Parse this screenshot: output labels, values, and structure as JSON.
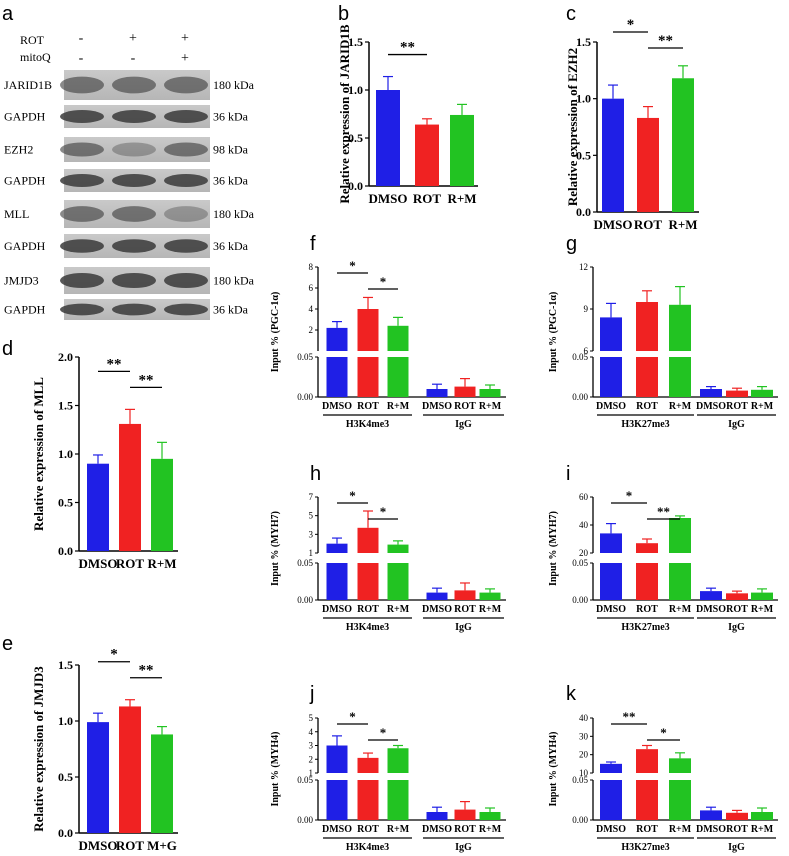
{
  "colors": {
    "blue": "#1f1fe6",
    "red": "#f02222",
    "green": "#22c322",
    "axis": "#000000"
  },
  "panel_labels": {
    "a": "a",
    "b": "b",
    "c": "c",
    "d": "d",
    "e": "e",
    "f": "f",
    "g": "g",
    "h": "h",
    "i": "i",
    "j": "j",
    "k": "k"
  },
  "western_blot": {
    "treatments": [
      {
        "name": "ROT",
        "signs": [
          "-",
          "+",
          "+"
        ]
      },
      {
        "name": "mitoQ",
        "signs": [
          "-",
          "-",
          "+"
        ]
      }
    ],
    "rows": [
      {
        "protein": "JARID1B",
        "size": "180 kDa"
      },
      {
        "protein": "GAPDH",
        "size": "36 kDa"
      },
      {
        "protein": "EZH2",
        "size": "98 kDa"
      },
      {
        "protein": "GAPDH",
        "size": "36 kDa"
      },
      {
        "protein": "MLL",
        "size": "180 kDa"
      },
      {
        "protein": "GAPDH",
        "size": "36 kDa"
      },
      {
        "protein": "JMJD3",
        "size": "180 kDa"
      },
      {
        "protein": "GAPDH",
        "size": "36 kDa"
      }
    ]
  },
  "chart_data": [
    {
      "id": "b",
      "type": "bar",
      "ylabel": "Relative expression of JARID1B",
      "categories": [
        "DMSO",
        "ROT",
        "R+M"
      ],
      "values": [
        1.0,
        0.64,
        0.74
      ],
      "errors": [
        0.14,
        0.06,
        0.11
      ],
      "ylim": [
        0,
        1.5
      ],
      "yticks": [
        "0.0",
        "0.5",
        "1.0",
        "1.5"
      ],
      "sig": [
        {
          "from": 0,
          "to": 1,
          "label": "**"
        }
      ]
    },
    {
      "id": "c",
      "type": "bar",
      "ylabel": "Relative expression of EZH2",
      "categories": [
        "DMSO",
        "ROT",
        "R+M"
      ],
      "values": [
        1.0,
        0.83,
        1.18
      ],
      "errors": [
        0.12,
        0.1,
        0.11
      ],
      "ylim": [
        0,
        1.5
      ],
      "yticks": [
        "0.0",
        "0.5",
        "1.0",
        "1.5"
      ],
      "sig": [
        {
          "from": 0,
          "to": 1,
          "label": "*"
        },
        {
          "from": 1,
          "to": 2,
          "label": "**"
        }
      ]
    },
    {
      "id": "d",
      "type": "bar",
      "ylabel": "Relative expression of MLL",
      "categories": [
        "DMSO",
        "ROT",
        "R+M"
      ],
      "values": [
        0.9,
        1.31,
        0.95
      ],
      "errors": [
        0.09,
        0.15,
        0.17
      ],
      "ylim": [
        0,
        2.0
      ],
      "yticks": [
        "0.0",
        "0.5",
        "1.0",
        "1.5",
        "2.0"
      ],
      "sig": [
        {
          "from": 0,
          "to": 1,
          "label": "**"
        },
        {
          "from": 1,
          "to": 2,
          "label": "**"
        }
      ]
    },
    {
      "id": "e",
      "type": "bar",
      "ylabel": "Relative expression of JMJD3",
      "categories": [
        "DMSO",
        "ROT",
        "M+G"
      ],
      "values": [
        0.99,
        1.13,
        0.88
      ],
      "errors": [
        0.08,
        0.06,
        0.07
      ],
      "ylim": [
        0,
        1.5
      ],
      "yticks": [
        "0.0",
        "0.5",
        "1.0",
        "1.5"
      ],
      "sig": [
        {
          "from": 0,
          "to": 1,
          "label": "*"
        },
        {
          "from": 1,
          "to": 2,
          "label": "**"
        }
      ]
    },
    {
      "id": "f",
      "type": "bar",
      "ylabel": "Input % (PGC-1α)",
      "categories": [
        "DMSO",
        "ROT",
        "R+M",
        "DMSO",
        "ROT",
        "R+M"
      ],
      "groups": [
        "H3K4me3",
        "IgG"
      ],
      "lower": {
        "values": [
          0.01,
          0.013,
          0.01
        ],
        "errors": [
          0.006,
          0.01,
          0.005
        ],
        "ylim": [
          0,
          0.05
        ],
        "yticks": [
          "0.00",
          "0.05"
        ]
      },
      "upper": {
        "values": [
          2.2,
          4.0,
          2.4
        ],
        "errors": [
          0.6,
          1.1,
          0.8
        ],
        "ylim": [
          0,
          8
        ],
        "yticks": [
          "2",
          "4",
          "6",
          "8"
        ]
      },
      "sig": [
        {
          "from": 0,
          "to": 1,
          "label": "*"
        },
        {
          "from": 1,
          "to": 2,
          "label": "*"
        }
      ]
    },
    {
      "id": "g",
      "type": "bar",
      "ylabel": "Input % (PGC-1α)",
      "categories": [
        "DMSO",
        "ROT",
        "R+M",
        "DMSO",
        "ROT",
        "R+M"
      ],
      "groups": [
        "H3K27me3",
        "IgG"
      ],
      "lower": {
        "values": [
          0.01,
          0.008,
          0.009
        ],
        "errors": [
          0.003,
          0.003,
          0.004
        ],
        "ylim": [
          0,
          0.05
        ],
        "yticks": [
          "0.00",
          "0.05"
        ]
      },
      "upper": {
        "values": [
          8.4,
          9.5,
          9.3
        ],
        "errors": [
          1.0,
          0.8,
          1.3
        ],
        "ylim": [
          6,
          12
        ],
        "yticks": [
          "6",
          "9",
          "12"
        ]
      },
      "sig": []
    },
    {
      "id": "h",
      "type": "bar",
      "ylabel": "Input % (MYH7)",
      "categories": [
        "DMSO",
        "ROT",
        "R+M",
        "DMSO",
        "ROT",
        "R+M"
      ],
      "groups": [
        "H3K4me3",
        "IgG"
      ],
      "lower": {
        "values": [
          0.01,
          0.013,
          0.01
        ],
        "errors": [
          0.006,
          0.01,
          0.005
        ],
        "ylim": [
          0,
          0.05
        ],
        "yticks": [
          "0.00",
          "0.05"
        ]
      },
      "upper": {
        "values": [
          2.0,
          3.7,
          1.9
        ],
        "errors": [
          0.6,
          1.8,
          0.4
        ],
        "ylim": [
          1,
          7
        ],
        "yticks": [
          "1",
          "3",
          "5",
          "7"
        ]
      },
      "sig": [
        {
          "from": 0,
          "to": 1,
          "label": "*"
        },
        {
          "from": 1,
          "to": 2,
          "label": "*"
        }
      ]
    },
    {
      "id": "i",
      "type": "bar",
      "ylabel": "Input % (MYH7)",
      "categories": [
        "DMSO",
        "ROT",
        "R+M",
        "DMSO",
        "ROT",
        "R+M"
      ],
      "groups": [
        "H3K27me3",
        "IgG"
      ],
      "lower": {
        "values": [
          0.012,
          0.009,
          0.01
        ],
        "errors": [
          0.004,
          0.003,
          0.005
        ],
        "ylim": [
          0,
          0.05
        ],
        "yticks": [
          "0.00",
          "0.05"
        ]
      },
      "upper": {
        "values": [
          34,
          27,
          45
        ],
        "errors": [
          7,
          3,
          1.5
        ],
        "ylim": [
          20,
          60
        ],
        "yticks": [
          "20",
          "40",
          "60"
        ]
      },
      "sig": [
        {
          "from": 0,
          "to": 1,
          "label": "*"
        },
        {
          "from": 1,
          "to": 2,
          "label": "**"
        }
      ]
    },
    {
      "id": "j",
      "type": "bar",
      "ylabel": "Input % (MYH4)",
      "categories": [
        "DMSO",
        "ROT",
        "R+M",
        "DMSO",
        "ROT",
        "R+M"
      ],
      "groups": [
        "H3K4me3",
        "IgG"
      ],
      "lower": {
        "values": [
          0.01,
          0.013,
          0.01
        ],
        "errors": [
          0.006,
          0.01,
          0.005
        ],
        "ylim": [
          0,
          0.05
        ],
        "yticks": [
          "0.00",
          "0.05"
        ]
      },
      "upper": {
        "values": [
          3.0,
          2.1,
          2.8
        ],
        "errors": [
          0.7,
          0.35,
          0.2
        ],
        "ylim": [
          1,
          5
        ],
        "yticks": [
          "1",
          "2",
          "3",
          "4",
          "5"
        ]
      },
      "sig": [
        {
          "from": 0,
          "to": 1,
          "label": "*"
        },
        {
          "from": 1,
          "to": 2,
          "label": "*"
        }
      ]
    },
    {
      "id": "k",
      "type": "bar",
      "ylabel": "Input % (MYH4)",
      "categories": [
        "DMSO",
        "ROT",
        "R+M",
        "DMSO",
        "ROT",
        "R+M"
      ],
      "groups": [
        "H3K27me3",
        "IgG"
      ],
      "lower": {
        "values": [
          0.012,
          0.009,
          0.01
        ],
        "errors": [
          0.004,
          0.003,
          0.005
        ],
        "ylim": [
          0,
          0.05
        ],
        "yticks": [
          "0.00",
          "0.05"
        ]
      },
      "upper": {
        "values": [
          15,
          23,
          18
        ],
        "errors": [
          1,
          2,
          3
        ],
        "ylim": [
          10,
          40
        ],
        "yticks": [
          "10",
          "20",
          "30",
          "40"
        ]
      },
      "sig": [
        {
          "from": 0,
          "to": 1,
          "label": "**"
        },
        {
          "from": 1,
          "to": 2,
          "label": "*"
        }
      ]
    }
  ]
}
